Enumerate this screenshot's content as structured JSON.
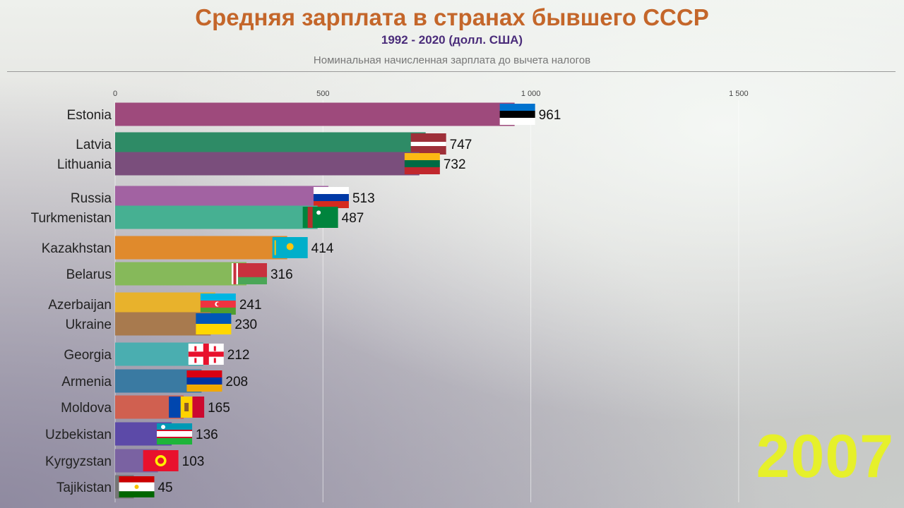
{
  "chart_data": {
    "type": "bar",
    "orientation": "horizontal",
    "title": "Средняя зарплата в странах бывшего СССР",
    "subtitle": "1992 - 2020 (долл. США)",
    "note": "Номинальная начисленная зарплата до вычета налогов",
    "year": "2007",
    "xlim": [
      0,
      1900
    ],
    "ticks": [
      {
        "value": 0,
        "label": "0"
      },
      {
        "value": 500,
        "label": "500"
      },
      {
        "value": 1000,
        "label": "1 000"
      },
      {
        "value": 1500,
        "label": "1 500"
      }
    ],
    "grid": true,
    "categories": [
      "Estonia",
      "Latvia",
      "Lithuania",
      "Russia",
      "Turkmenistan",
      "Kazakhstan",
      "Belarus",
      "Azerbaijan",
      "Ukraine",
      "Georgia",
      "Armenia",
      "Moldova",
      "Uzbekistan",
      "Kyrgyzstan",
      "Tajikistan"
    ],
    "values": [
      961,
      747,
      732,
      513,
      487,
      414,
      316,
      241,
      230,
      212,
      208,
      165,
      136,
      103,
      45
    ],
    "colors": [
      "#9e4a7c",
      "#2e8b66",
      "#7a4e7c",
      "#a262a2",
      "#46b092",
      "#e08a2c",
      "#86b95a",
      "#e8b22c",
      "#a87a4e",
      "#4aaeb0",
      "#3a7aa2",
      "#d06050",
      "#5c4aa8",
      "#7a62a2",
      "#757575"
    ],
    "flags": [
      "estonia-flag",
      "latvia-flag",
      "lithuania-flag",
      "russia-flag",
      "turkmenistan-flag",
      "kazakhstan-flag",
      "belarus-flag",
      "azerbaijan-flag",
      "ukraine-flag",
      "georgia-flag",
      "armenia-flag",
      "moldova-flag",
      "uzbekistan-flag",
      "kyrgyzstan-flag",
      "tajikistan-flag"
    ]
  }
}
